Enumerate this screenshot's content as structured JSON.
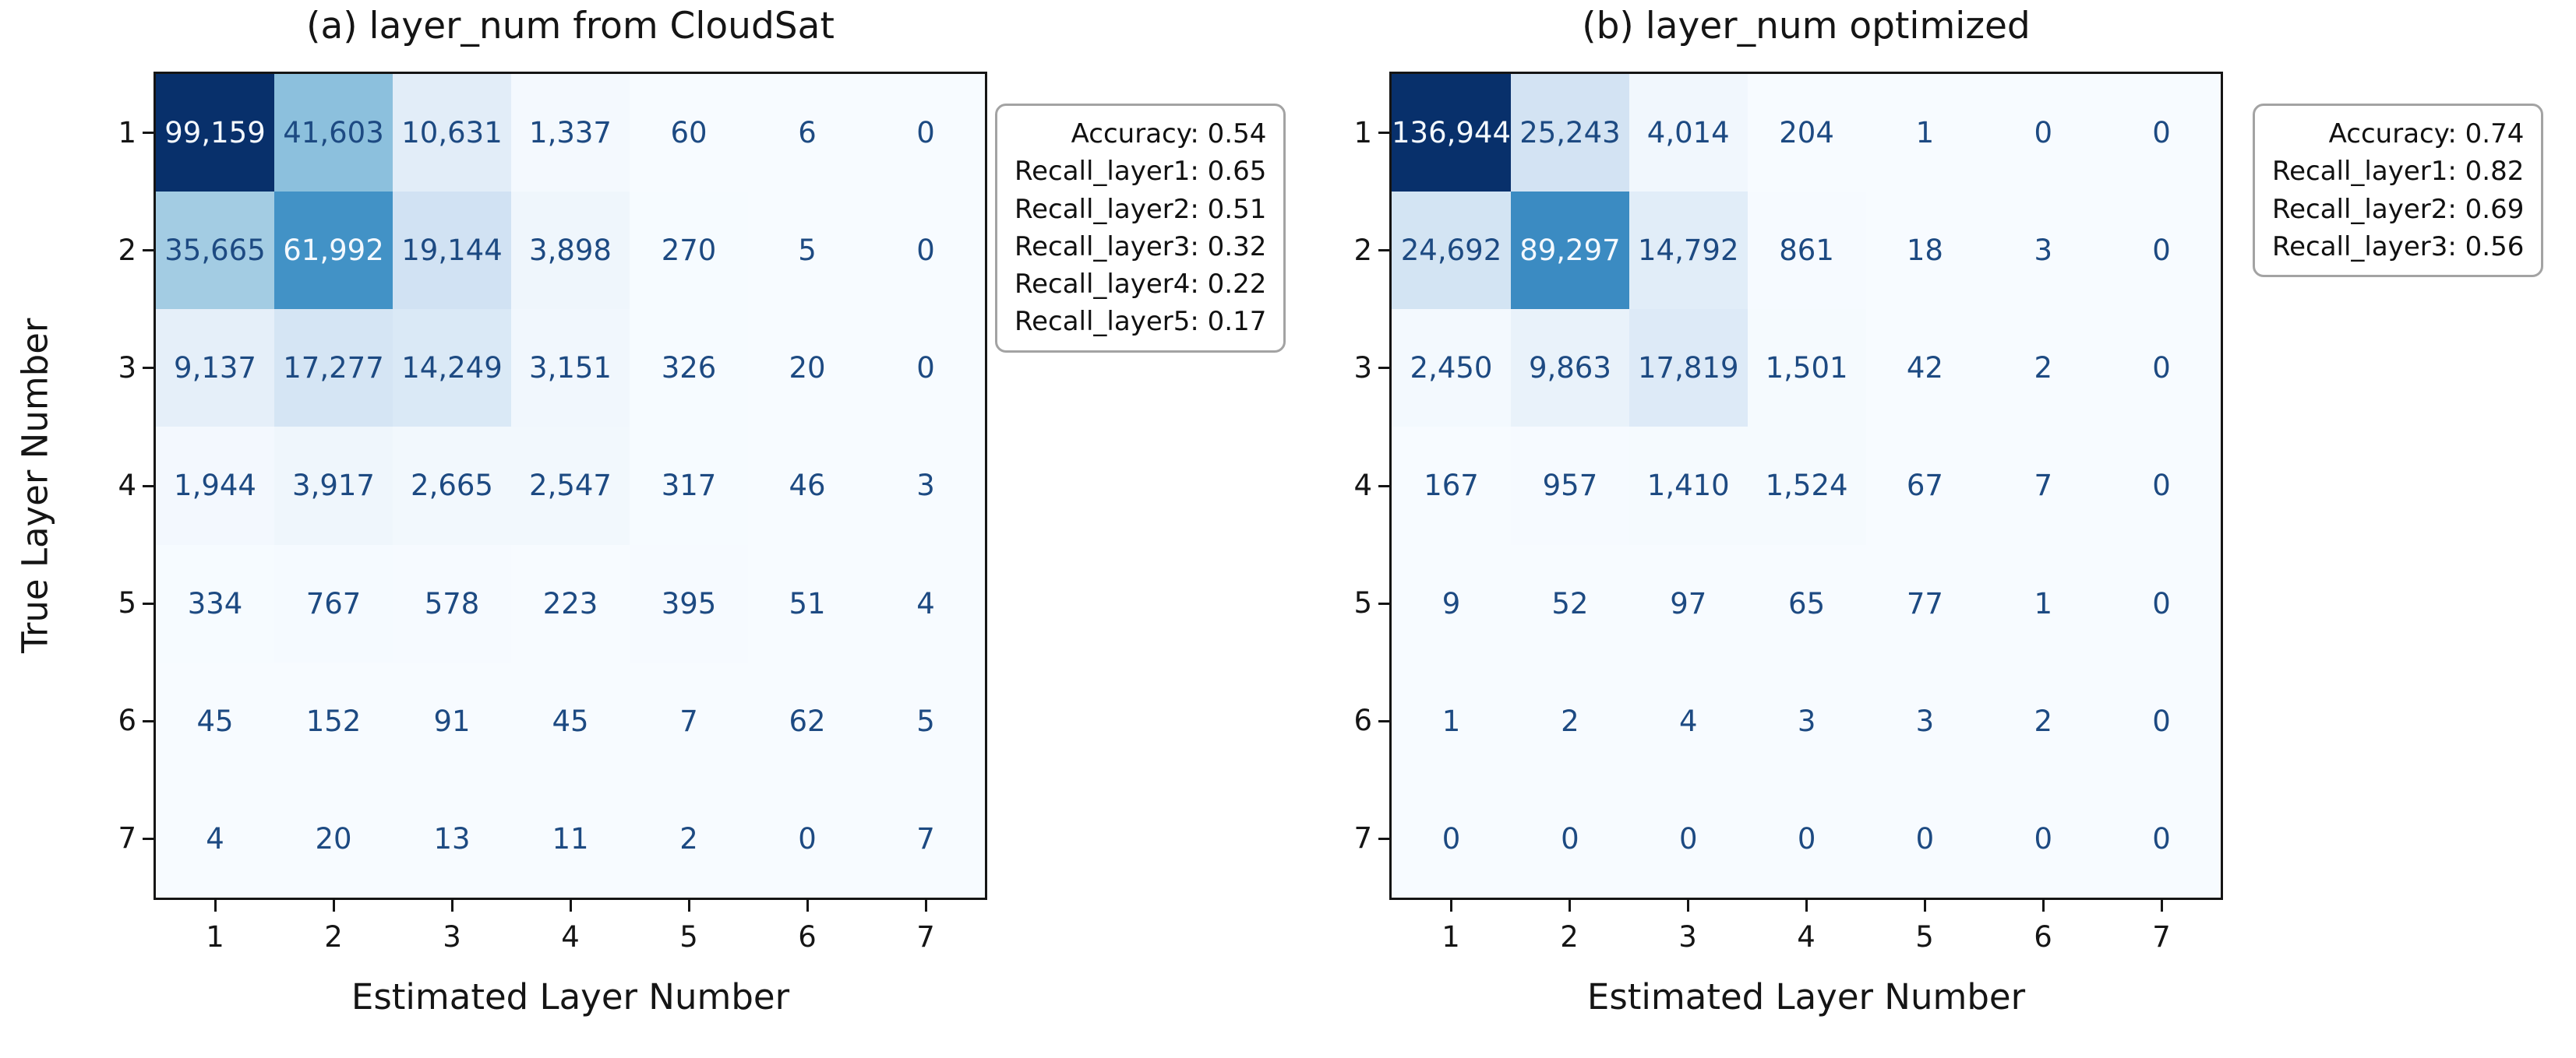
{
  "figure": {
    "colormap_stops": [
      "#f7fbff",
      "#deebf7",
      "#c6dbef",
      "#9ecae1",
      "#6baed6",
      "#4292c6",
      "#2171b5",
      "#08519c",
      "#08306b"
    ],
    "cell_text_dark": "#1d4a82",
    "cell_text_light": "#f4f9fe",
    "axis_text_color": "#151515"
  },
  "chart_data": [
    {
      "type": "heatmap",
      "title": "(a) layer_num from CloudSat",
      "xlabel": "Estimated Layer Number",
      "ylabel": "True Layer Number",
      "x_tick_labels": [
        "1",
        "2",
        "3",
        "4",
        "5",
        "6",
        "7"
      ],
      "y_tick_labels": [
        "1",
        "2",
        "3",
        "4",
        "5",
        "6",
        "7"
      ],
      "colormap": "Blues",
      "grid": false,
      "values": [
        [
          99159,
          41603,
          10631,
          1337,
          60,
          6,
          0
        ],
        [
          35665,
          61992,
          19144,
          3898,
          270,
          5,
          0
        ],
        [
          9137,
          17277,
          14249,
          3151,
          326,
          20,
          0
        ],
        [
          1944,
          3917,
          2665,
          2547,
          317,
          46,
          3
        ],
        [
          334,
          767,
          578,
          223,
          395,
          51,
          4
        ],
        [
          45,
          152,
          91,
          45,
          7,
          62,
          5
        ],
        [
          4,
          20,
          13,
          11,
          2,
          0,
          7
        ]
      ],
      "stats_box": [
        "Accuracy: 0.54",
        "Recall_layer1: 0.65",
        "Recall_layer2: 0.51",
        "Recall_layer3: 0.32",
        "Recall_layer4: 0.22",
        "Recall_layer5: 0.17"
      ]
    },
    {
      "type": "heatmap",
      "title": "(b) layer_num optimized",
      "xlabel": "Estimated Layer Number",
      "x_tick_labels": [
        "1",
        "2",
        "3",
        "4",
        "5",
        "6",
        "7"
      ],
      "y_tick_labels": [
        "1",
        "2",
        "3",
        "4",
        "5",
        "6",
        "7"
      ],
      "colormap": "Blues",
      "grid": false,
      "values": [
        [
          136944,
          25243,
          4014,
          204,
          1,
          0,
          0
        ],
        [
          24692,
          89297,
          14792,
          861,
          18,
          3,
          0
        ],
        [
          2450,
          9863,
          17819,
          1501,
          42,
          2,
          0
        ],
        [
          167,
          957,
          1410,
          1524,
          67,
          7,
          0
        ],
        [
          9,
          52,
          97,
          65,
          77,
          1,
          0
        ],
        [
          1,
          2,
          4,
          3,
          3,
          2,
          0
        ],
        [
          0,
          0,
          0,
          0,
          0,
          0,
          0
        ]
      ],
      "stats_box": [
        "Accuracy: 0.74",
        "Recall_layer1: 0.82",
        "Recall_layer2: 0.69",
        "Recall_layer3: 0.56"
      ]
    }
  ]
}
